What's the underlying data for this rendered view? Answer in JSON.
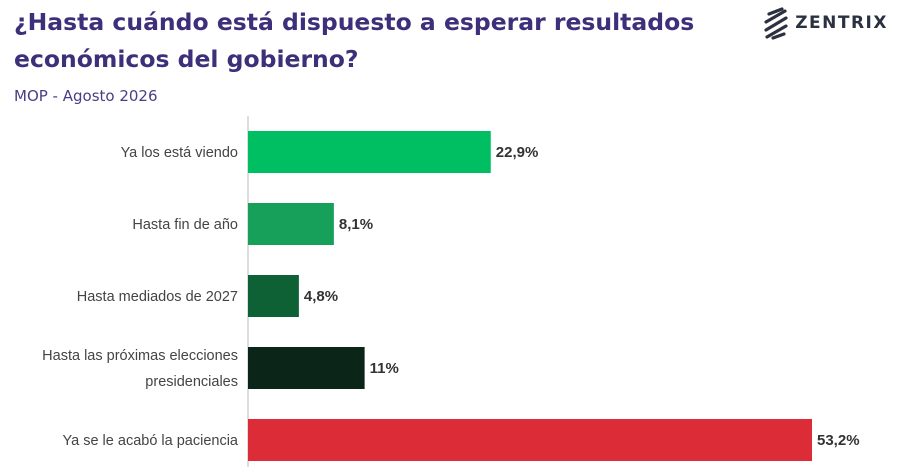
{
  "header": {
    "title": "¿Hasta cuándo está dispuesto a esperar resultados económicos del gobierno?",
    "subtitle": "MOP - Agosto 2026",
    "logo_text": "ZENTRIX",
    "logo_icon": "zentrix-logo-icon"
  },
  "chart_data": {
    "type": "bar",
    "orientation": "horizontal",
    "title": "¿Hasta cuándo está dispuesto a esperar resultados económicos del gobierno?",
    "subtitle": "MOP - Agosto 2026",
    "categories": [
      [
        "Ya los está viendo"
      ],
      [
        "Hasta fin de año"
      ],
      [
        "Hasta mediados de 2027"
      ],
      [
        "Hasta las próximas elecciones",
        "presidenciales"
      ],
      [
        "Ya se le acabó la paciencia"
      ]
    ],
    "values": [
      22.9,
      8.1,
      4.8,
      11,
      53.2
    ],
    "value_labels": [
      "22,9%",
      "8,1%",
      "4,8%",
      "11%",
      "53,2%"
    ],
    "colors": [
      "#00bf63",
      "#16a05a",
      "#0e6035",
      "#0b2518",
      "#dc2c37"
    ],
    "xlim": [
      0,
      53.2
    ],
    "grid": false,
    "legend": "none"
  }
}
